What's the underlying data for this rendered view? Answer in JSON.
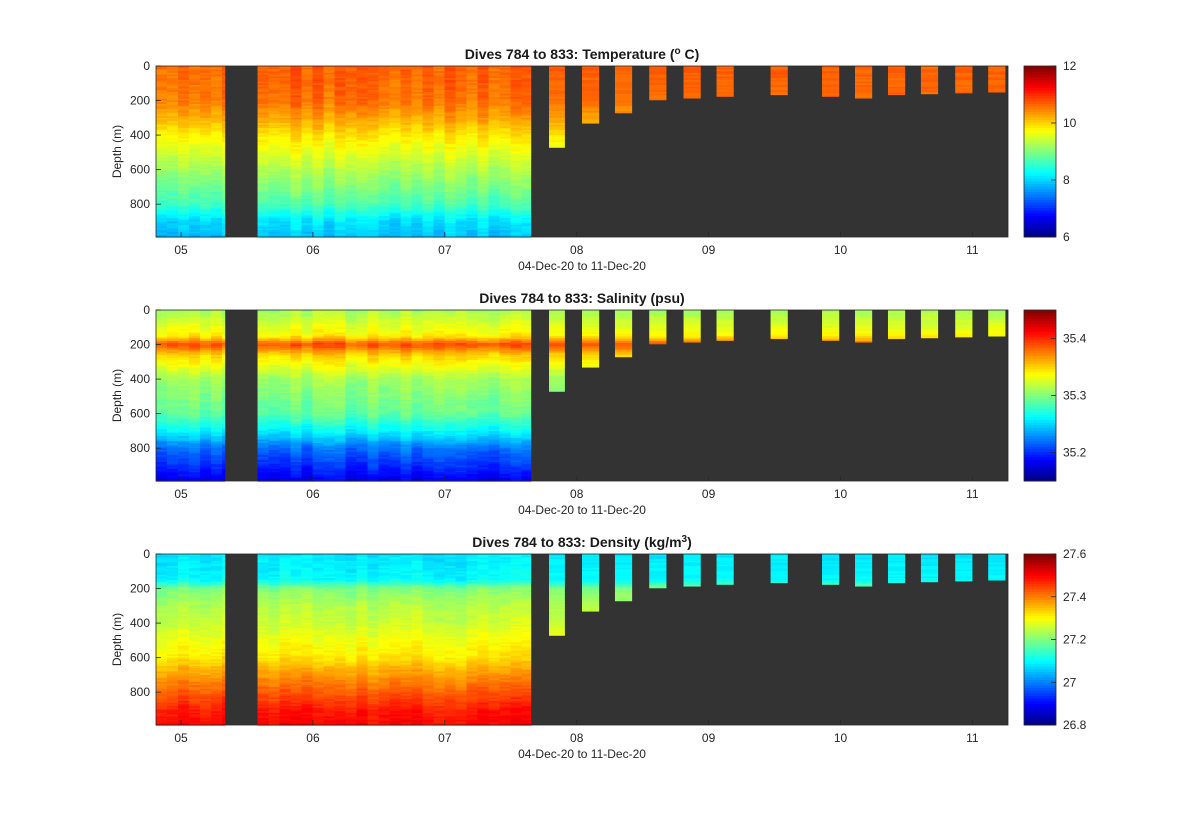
{
  "figure_title": "",
  "colors": {
    "background": "#ffffff",
    "no_data": "#333333",
    "axis": "#262626",
    "colormap": "jet"
  },
  "chart_data": [
    {
      "type": "heatmap",
      "title": "Dives 784 to 833: Temperature (",
      "title_super": "o",
      "title_suffix": " C)",
      "variable": "Temperature",
      "units": "°C",
      "xlabel": "04-Dec-20 to 11-Dec-20",
      "ylabel": "Depth (m)",
      "xlim": [
        4.81,
        11.27
      ],
      "ylim": [
        990,
        0
      ],
      "xticks": [
        5,
        6,
        7,
        8,
        9,
        10,
        11
      ],
      "xticklabels": [
        "05",
        "06",
        "07",
        "08",
        "09",
        "10",
        "11"
      ],
      "yticks": [
        0,
        200,
        400,
        600,
        800
      ],
      "yticklabels": [
        "0",
        "200",
        "400",
        "600",
        "800"
      ],
      "colorbar": {
        "min": 6,
        "max": 12,
        "ticks": [
          6,
          8,
          10,
          12
        ],
        "ticklabels": [
          "6",
          "8",
          "10",
          "12"
        ]
      },
      "profile": {
        "depths": [
          0,
          200,
          300,
          400,
          500,
          600,
          700,
          800,
          900,
          990
        ],
        "values": [
          10.7,
          10.6,
          10.3,
          9.9,
          9.6,
          9.3,
          9.0,
          8.7,
          8.1,
          7.9
        ]
      },
      "layer_anomaly": null
    },
    {
      "type": "heatmap",
      "title": "Dives 784 to 833: Salinity (psu)",
      "title_super": "",
      "title_suffix": "",
      "variable": "Salinity",
      "units": "psu",
      "xlabel": "04-Dec-20 to 11-Dec-20",
      "ylabel": "Depth (m)",
      "xlim": [
        4.81,
        11.27
      ],
      "ylim": [
        990,
        0
      ],
      "xticks": [
        5,
        6,
        7,
        8,
        9,
        10,
        11
      ],
      "xticklabels": [
        "05",
        "06",
        "07",
        "08",
        "09",
        "10",
        "11"
      ],
      "yticks": [
        0,
        200,
        400,
        600,
        800
      ],
      "yticklabels": [
        "0",
        "200",
        "400",
        "600",
        "800"
      ],
      "colorbar": {
        "min": 35.15,
        "max": 35.45,
        "ticks": [
          35.2,
          35.3,
          35.4
        ],
        "ticklabels": [
          "35.2",
          "35.3",
          "35.4"
        ]
      },
      "profile": {
        "depths": [
          0,
          150,
          200,
          260,
          400,
          600,
          700,
          800,
          900,
          990
        ],
        "values": [
          35.31,
          35.34,
          35.39,
          35.35,
          35.31,
          35.29,
          35.26,
          35.22,
          35.2,
          35.18
        ]
      },
      "layer_anomaly": null
    },
    {
      "type": "heatmap",
      "title": "Dives 784 to 833: Density (kg/m",
      "title_super": "3",
      "title_suffix": ")",
      "variable": "Density",
      "units": "kg/m3",
      "xlabel": "04-Dec-20 to 11-Dec-20",
      "ylabel": "Depth (m)",
      "xlim": [
        4.81,
        11.27
      ],
      "ylim": [
        990,
        0
      ],
      "xticks": [
        5,
        6,
        7,
        8,
        9,
        10,
        11
      ],
      "xticklabels": [
        "05",
        "06",
        "07",
        "08",
        "09",
        "10",
        "11"
      ],
      "yticks": [
        0,
        200,
        400,
        600,
        800
      ],
      "yticklabels": [
        "0",
        "200",
        "400",
        "600",
        "800"
      ],
      "colorbar": {
        "min": 26.8,
        "max": 27.6,
        "ticks": [
          26.8,
          27,
          27.2,
          27.4,
          27.6
        ],
        "ticklabels": [
          "26.8",
          "27",
          "27.2",
          "27.4",
          "27.6"
        ]
      },
      "profile": {
        "depths": [
          0,
          150,
          200,
          300,
          400,
          500,
          600,
          700,
          800,
          900,
          990
        ],
        "values": [
          27.08,
          27.1,
          27.2,
          27.24,
          27.26,
          27.29,
          27.32,
          27.38,
          27.43,
          27.48,
          27.5
        ]
      },
      "layer_anomaly": null
    }
  ],
  "dives": {
    "continuous_sections": [
      {
        "start": 4.81,
        "end": 5.33,
        "max_depth": 990
      },
      {
        "start": 5.58,
        "end": 7.65,
        "max_depth": 990
      }
    ],
    "shallow_dives": [
      {
        "start": 7.79,
        "end": 7.91,
        "max_depth": 470
      },
      {
        "start": 8.04,
        "end": 8.17,
        "max_depth": 330
      },
      {
        "start": 8.29,
        "end": 8.42,
        "max_depth": 270
      },
      {
        "start": 8.55,
        "end": 8.68,
        "max_depth": 195
      },
      {
        "start": 8.81,
        "end": 8.94,
        "max_depth": 185
      },
      {
        "start": 9.06,
        "end": 9.19,
        "max_depth": 175
      },
      {
        "start": 9.47,
        "end": 9.6,
        "max_depth": 165
      },
      {
        "start": 9.86,
        "end": 9.99,
        "max_depth": 175
      },
      {
        "start": 10.11,
        "end": 10.24,
        "max_depth": 185
      },
      {
        "start": 10.36,
        "end": 10.49,
        "max_depth": 165
      },
      {
        "start": 10.61,
        "end": 10.74,
        "max_depth": 160
      },
      {
        "start": 10.87,
        "end": 11.0,
        "max_depth": 155
      },
      {
        "start": 11.12,
        "end": 11.25,
        "max_depth": 150
      }
    ]
  }
}
